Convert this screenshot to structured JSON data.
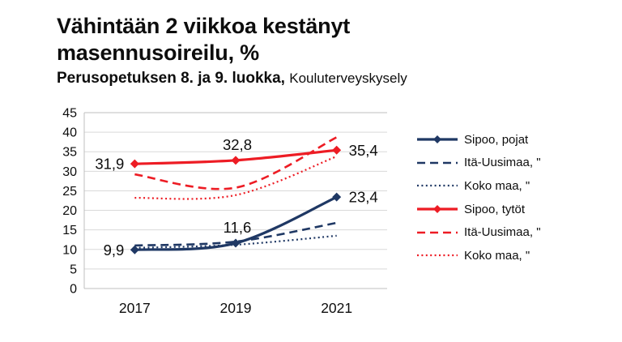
{
  "title": {
    "line1": "Vähintään 2 viikkoa kestänyt",
    "line2": "masennusoireilu, %"
  },
  "subtitle": {
    "bold": "Perusopetuksen 8. ja 9. luokka,",
    "regular": "Kouluterveyskysely"
  },
  "colors": {
    "navy": "#1f3864",
    "red": "#ed1c24",
    "grid": "#d9d9d9",
    "axis_border": "#bfbfbf",
    "text": "#0d0d0d",
    "background": "#ffffff"
  },
  "chart_data": {
    "type": "line",
    "title": "Vähintään 2 viikkoa kestänyt masennusoireilu, %",
    "subtitle": "Perusopetuksen 8. ja 9. luokka, Kouluterveyskysely",
    "categories": [
      "2017",
      "2019",
      "2021"
    ],
    "xlabel": "",
    "ylabel": "",
    "ylim": [
      0,
      45
    ],
    "ytick_step": 5,
    "grid": true,
    "legend_position": "right",
    "smooth_lines": true,
    "series": [
      {
        "name": "Sipoo, pojat",
        "color_key": "navy",
        "style": "solid",
        "marker": "diamond",
        "values": [
          9.9,
          11.6,
          23.4
        ],
        "labels": [
          "9,9",
          "11,6",
          "23,4"
        ],
        "label_positions": [
          "left",
          "top",
          "right"
        ]
      },
      {
        "name": "Itä-Uusimaa, \"",
        "color_key": "navy",
        "style": "dashed",
        "marker": "none",
        "values": [
          11.0,
          12.0,
          16.8
        ],
        "labels": [],
        "label_positions": []
      },
      {
        "name": "Koko maa, \"",
        "color_key": "navy",
        "style": "dotted",
        "marker": "none",
        "values": [
          10.4,
          11.2,
          13.5
        ],
        "labels": [],
        "label_positions": []
      },
      {
        "name": "Sipoo, tytöt",
        "color_key": "red",
        "style": "solid",
        "marker": "diamond",
        "values": [
          31.9,
          32.8,
          35.4
        ],
        "labels": [
          "31,9",
          "32,8",
          "35,4"
        ],
        "label_positions": [
          "left",
          "top",
          "right"
        ]
      },
      {
        "name": "Itä-Uusimaa, \"",
        "color_key": "red",
        "style": "dashed",
        "marker": "none",
        "values": [
          29.2,
          25.8,
          38.7
        ],
        "labels": [],
        "label_positions": []
      },
      {
        "name": "Koko maa, \"",
        "color_key": "red",
        "style": "dotted",
        "marker": "none",
        "values": [
          23.2,
          23.9,
          33.8
        ],
        "labels": [],
        "label_positions": []
      }
    ]
  }
}
